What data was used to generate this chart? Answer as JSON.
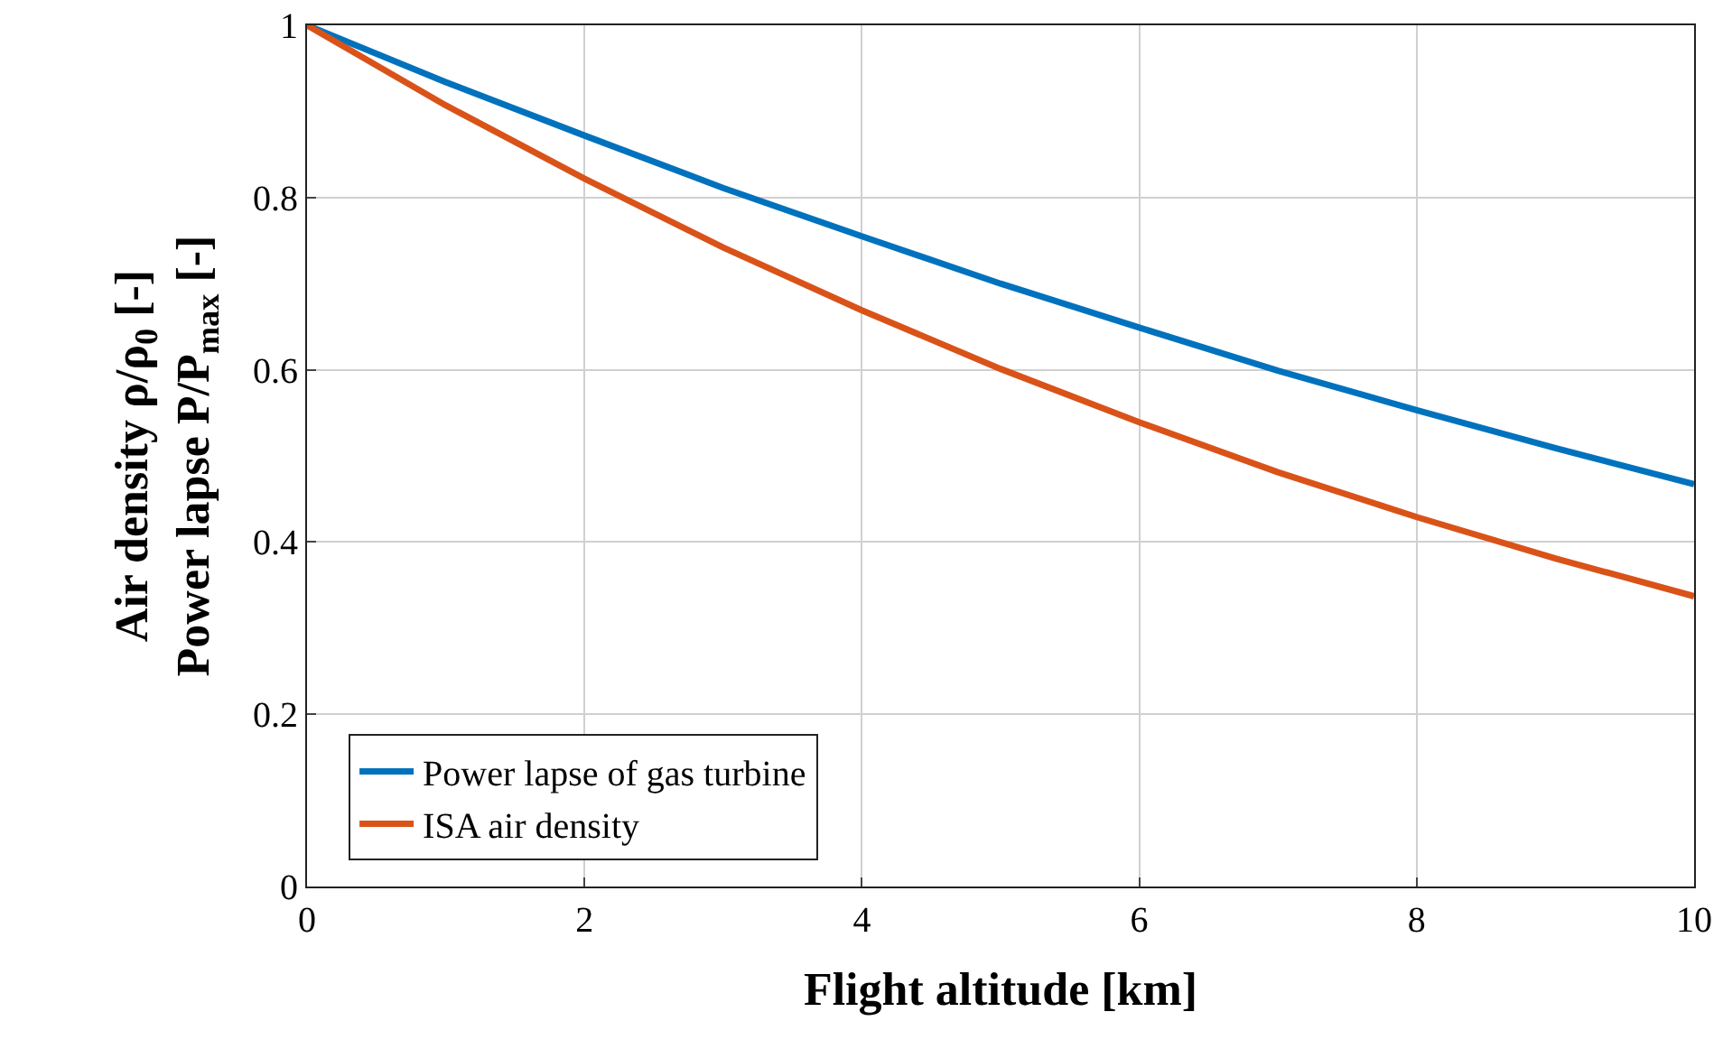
{
  "chart_data": {
    "type": "line",
    "xlabel": "Flight altitude [km]",
    "ylabel": "Air density ρ/ρ$_{0}$ [-]\nPower lapse P/P$_{max}$ [-]",
    "x": [
      0,
      1,
      2,
      3,
      4,
      5,
      6,
      7,
      8,
      9,
      10
    ],
    "series": [
      {
        "name": "Power lapse of gas turbine",
        "color": "#0072bd",
        "values": [
          1,
          0.934,
          0.872,
          0.811,
          0.755,
          0.7,
          0.649,
          0.599,
          0.553,
          0.509,
          0.467
        ]
      },
      {
        "name": "ISA air density",
        "color": "#d95319",
        "values": [
          1,
          0.907,
          0.822,
          0.742,
          0.669,
          0.601,
          0.539,
          0.481,
          0.429,
          0.381,
          0.337
        ]
      }
    ],
    "xlim": [
      0,
      10
    ],
    "xticks": [
      0,
      2,
      4,
      6,
      8,
      10
    ],
    "ylim": [
      0,
      1
    ],
    "yticks": [
      0,
      0.2,
      0.4,
      0.6,
      0.8,
      1
    ],
    "grid": true,
    "legend": "bottom left",
    "marker": "none",
    "line_style": "solid"
  }
}
